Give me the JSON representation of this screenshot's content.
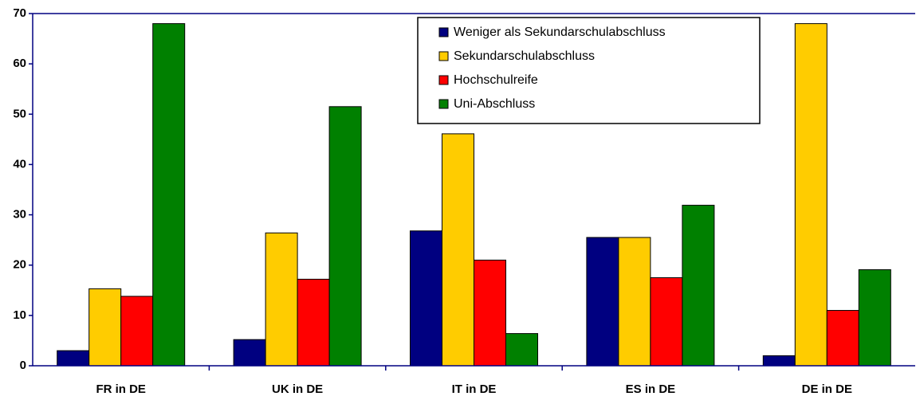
{
  "chart_data": {
    "type": "bar",
    "categories": [
      "FR in DE",
      "UK in DE",
      "IT in DE",
      "ES in DE",
      "DE in DE"
    ],
    "series": [
      {
        "name": "Weniger als Sekundarschulabschluss",
        "color": "#000080",
        "values": [
          3,
          5.2,
          26.8,
          25.5,
          2
        ]
      },
      {
        "name": "Sekundarschulabschluss",
        "color": "#ffcc00",
        "values": [
          15.3,
          26.4,
          46.1,
          25.5,
          68
        ]
      },
      {
        "name": "Hochschulreife",
        "color": "#ff0000",
        "values": [
          13.8,
          17.2,
          21,
          17.5,
          11
        ]
      },
      {
        "name": "Uni-Abschluss",
        "color": "#008000",
        "values": [
          68,
          51.5,
          6.4,
          31.9,
          19.1
        ]
      }
    ],
    "ylim": [
      0,
      70
    ],
    "yticks": [
      0,
      10,
      20,
      30,
      40,
      50,
      60,
      70
    ],
    "legend": "top-right"
  }
}
